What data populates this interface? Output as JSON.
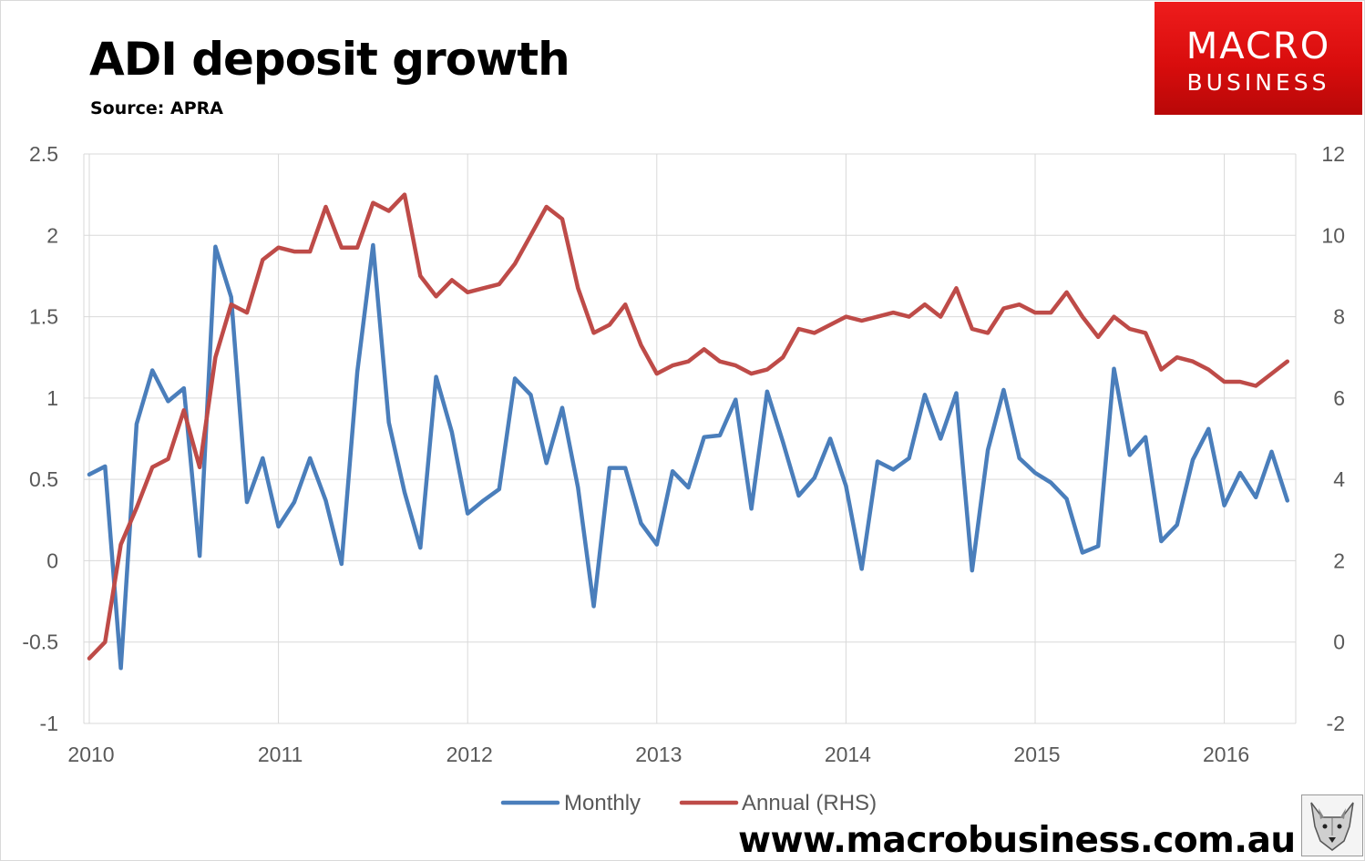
{
  "header": {
    "title": "ADI deposit growth",
    "subtitle": "Source: APRA"
  },
  "logo": {
    "line1": "MACRO",
    "line2": "BUSINESS"
  },
  "footer": {
    "website": "www.macrobusiness.com.au"
  },
  "colors": {
    "monthly": "#4a7ebb",
    "annual": "#be4b48",
    "gridline": "#d9d9d9",
    "logo": "#e31b1b"
  },
  "chart_data": {
    "type": "line",
    "x_start": "2010-01",
    "x_axis_labels": [
      "2010",
      "2011",
      "2012",
      "2013",
      "2014",
      "2015",
      "2016"
    ],
    "y_left": {
      "min": -1,
      "max": 2.5,
      "step": 0.5,
      "ticks": [
        "2.5",
        "2",
        "1.5",
        "1",
        "0.5",
        "0",
        "-0.5",
        "-1"
      ]
    },
    "y_right": {
      "min": -2,
      "max": 12,
      "step": 2,
      "ticks": [
        "12",
        "10",
        "8",
        "6",
        "4",
        "2",
        "0",
        "-2"
      ]
    },
    "grid": true,
    "legend_position": "bottom",
    "series": [
      {
        "name": "Monthly",
        "axis": "left",
        "values": [
          0.53,
          0.58,
          -0.66,
          0.84,
          1.17,
          0.98,
          1.06,
          0.03,
          1.93,
          1.62,
          0.36,
          0.63,
          0.21,
          0.36,
          0.63,
          0.37,
          -0.02,
          1.16,
          1.94,
          0.85,
          0.42,
          0.08,
          1.13,
          0.79,
          0.29,
          0.37,
          0.44,
          1.12,
          1.02,
          0.6,
          0.94,
          0.45,
          -0.28,
          0.57,
          0.57,
          0.23,
          0.1,
          0.55,
          0.45,
          0.76,
          0.77,
          0.99,
          0.32,
          1.04,
          0.73,
          0.4,
          0.51,
          0.75,
          0.46,
          -0.05,
          0.61,
          0.56,
          0.63,
          1.02,
          0.75,
          1.03,
          -0.06,
          0.68,
          1.05,
          0.63,
          0.54,
          0.48,
          0.38,
          0.05,
          0.09,
          1.18,
          0.65,
          0.76,
          0.12,
          0.22,
          0.62,
          0.81,
          0.34,
          0.54,
          0.39,
          0.67,
          0.37
        ]
      },
      {
        "name": "Annual (RHS)",
        "axis": "right",
        "values": [
          -0.4,
          0.0,
          2.4,
          3.3,
          4.3,
          4.5,
          5.7,
          4.3,
          7.0,
          8.3,
          8.1,
          9.4,
          9.7,
          9.6,
          9.6,
          10.7,
          9.7,
          9.7,
          10.8,
          10.6,
          11.0,
          9.0,
          8.5,
          8.9,
          8.6,
          8.7,
          8.8,
          9.3,
          10.0,
          10.7,
          10.4,
          8.7,
          7.6,
          7.8,
          8.3,
          7.3,
          6.6,
          6.8,
          6.9,
          7.2,
          6.9,
          6.8,
          6.6,
          6.7,
          7.0,
          7.7,
          7.6,
          7.8,
          8.0,
          7.9,
          8.0,
          8.1,
          8.0,
          8.3,
          8.0,
          8.7,
          7.7,
          7.6,
          8.2,
          8.3,
          8.1,
          8.1,
          8.6,
          8.0,
          7.5,
          8.0,
          7.7,
          7.6,
          6.7,
          7.0,
          6.9,
          6.7,
          6.4,
          6.4,
          6.3,
          6.6,
          6.9
        ]
      }
    ]
  }
}
